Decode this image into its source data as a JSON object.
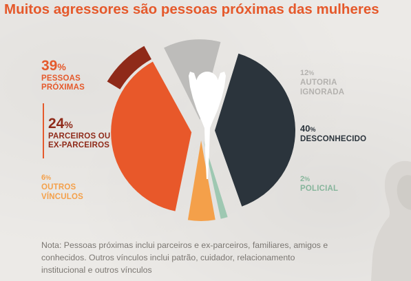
{
  "title": "Muitos agressores são pessoas próximas das mulheres",
  "colors": {
    "proximas": "#e8582a",
    "parceiros": "#8f2a19",
    "outros": "#f4a04a",
    "autoria": "#bdbcba",
    "desconhecido": "#2b343c",
    "policial": "#9ec8b2"
  },
  "labels": {
    "proximas": {
      "pct": "39",
      "sym": "%",
      "line1": "PESSOAS",
      "line2": "PRÓXIMAS"
    },
    "parceiros": {
      "pct": "24",
      "sym": "%",
      "line1": "PARCEIROS OU",
      "line2": "EX-PARCEIROS"
    },
    "outros": {
      "pct": "6",
      "sym": "%",
      "line1": "OUTROS",
      "line2": "VÍNCULOS"
    },
    "autoria": {
      "pct": "12",
      "sym": "%",
      "line1": "AUTORIA",
      "line2": "IGNORADA"
    },
    "desconhecido": {
      "pct": "40",
      "sym": "%",
      "line1": "DESCONHECIDO"
    },
    "policial": {
      "pct": "2",
      "sym": "%",
      "line1": "POLICIAL"
    }
  },
  "note": "Nota: Pessoas próximas inclui parceiros e ex-parceiros, familiares, amigos e conhecidos. Outros vínculos inclui patrão, cuidador, relacionamento institucional e outros vínculos",
  "icons": [
    "raised-arms-figure-icon",
    "woman-silhouette-icon"
  ],
  "chart_data": {
    "type": "pie",
    "title": "Muitos agressores são pessoas próximas das mulheres",
    "slices": [
      {
        "label": "DESCONHECIDO",
        "value": 40
      },
      {
        "label": "POLICIAL",
        "value": 2
      },
      {
        "label": "OUTROS VÍNCULOS",
        "value": 6
      },
      {
        "label": "PESSOAS PRÓXIMAS",
        "value": 39
      },
      {
        "label": "AUTORIA IGNORADA",
        "value": 12
      }
    ],
    "sub_slices": [
      {
        "label": "PARCEIROS OU EX-PARCEIROS",
        "value": 24,
        "part_of": "PESSOAS PRÓXIMAS"
      }
    ],
    "note": "Nota: Pessoas próximas inclui parceiros e ex-parceiros, familiares, amigos e conhecidos. Outros vínculos inclui patrão, cuidador, relacionamento institucional e outros vínculos"
  }
}
